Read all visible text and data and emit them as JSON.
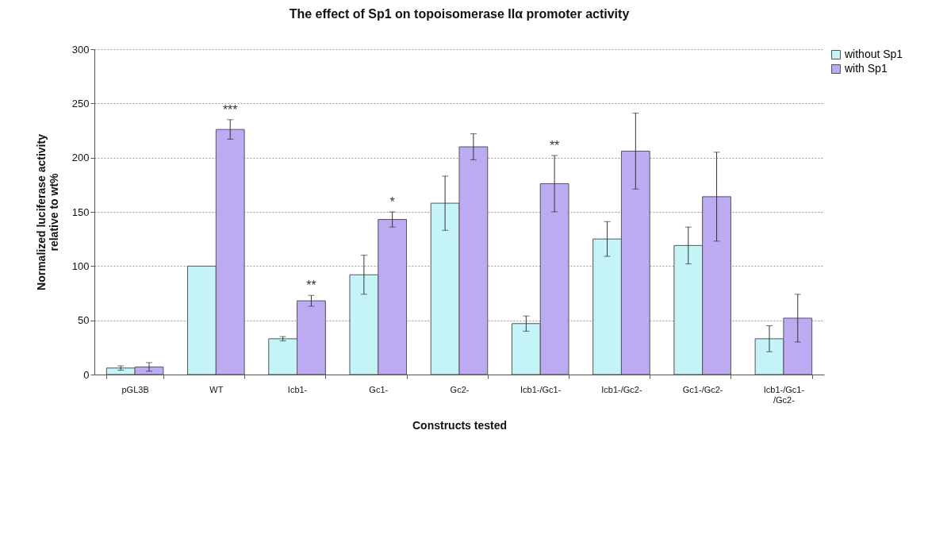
{
  "chart_data": {
    "type": "bar",
    "title": "The effect of Sp1 on topoisomerase IIα promoter activity",
    "xlabel": "Constructs tested",
    "ylabel": "Normalized luciferase activity relative to wt%",
    "categories": [
      "pGL3B",
      "WT",
      "Icb1-",
      "Gc1-",
      "Gc2-",
      "Icb1-/Gc1-",
      "Icb1-/Gc2-",
      "Gc1-/Gc2-",
      "Icb1-/Gc1-/Gc2-"
    ],
    "series": [
      {
        "name": "without Sp1",
        "color": "#c4f4f8",
        "values": [
          6,
          100,
          33,
          92,
          158,
          47,
          125,
          119,
          33
        ],
        "errors": [
          2,
          null,
          2,
          18,
          25,
          7,
          16,
          17,
          12
        ]
      },
      {
        "name": "with Sp1",
        "color": "#bcaaf2",
        "values": [
          7,
          226,
          68,
          143,
          210,
          176,
          206,
          164,
          52
        ],
        "errors": [
          4,
          9,
          5,
          7,
          12,
          26,
          35,
          41,
          22
        ]
      }
    ],
    "ylim": [
      0,
      300
    ],
    "yticks": [
      0,
      50,
      100,
      150,
      200,
      250,
      300
    ],
    "grid": "y",
    "legend": "right",
    "annotations": [
      {
        "text": "***",
        "x": "WT",
        "y": 226
      },
      {
        "text": "**",
        "x": "Icb1-",
        "y": 68
      },
      {
        "text": "*",
        "x": "Gc1-",
        "y": 143
      },
      {
        "text": "**",
        "x": "Icb1-/Gc1-",
        "y": 176
      }
    ]
  }
}
